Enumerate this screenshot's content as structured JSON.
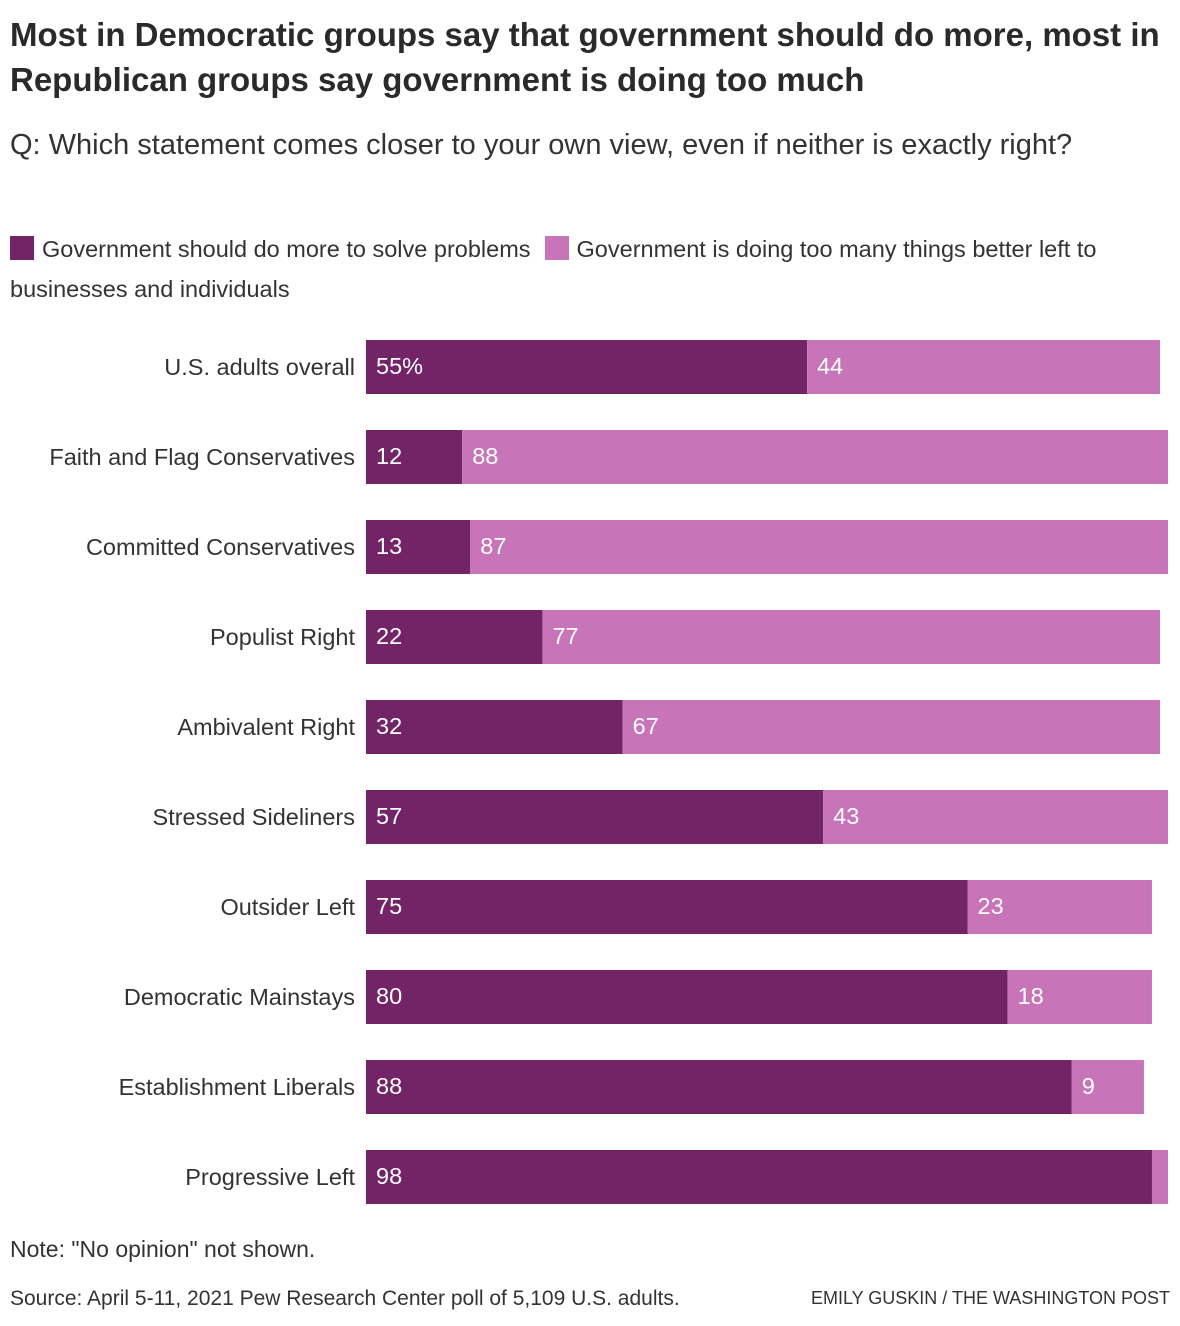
{
  "chart_data": {
    "type": "stacked-bar-horizontal",
    "title": "Most in Democratic groups say that government should do more, most in Republican groups say government is doing too much",
    "subtitle": "Q: Which statement comes closer to your own view, even if neither is exactly right?",
    "categories": [
      "U.S. adults overall",
      "Faith and Flag Conservatives",
      "Committed Conservatives",
      "Populist Right",
      "Ambivalent Right",
      "Stressed Sideliners",
      "Outsider Left",
      "Democratic Mainstays",
      "Establishment Liberals",
      "Progressive Left"
    ],
    "series": [
      {
        "name": "Government should do more to solve problems",
        "color": "#722467",
        "values": [
          55,
          12,
          13,
          22,
          32,
          57,
          75,
          80,
          88,
          98
        ],
        "value_labels": [
          "55%",
          "12",
          "13",
          "22",
          "32",
          "57",
          "75",
          "80",
          "88",
          "98"
        ]
      },
      {
        "name": "Government is doing too many things better left to businesses and individuals",
        "color": "#c774b8",
        "values": [
          44,
          88,
          87,
          77,
          67,
          43,
          23,
          18,
          9,
          2
        ],
        "value_labels": [
          "44",
          "88",
          "87",
          "77",
          "67",
          "43",
          "23",
          "18",
          "9",
          null
        ]
      }
    ],
    "xlim": [
      0,
      100
    ],
    "note": "Note: \"No opinion\" not shown.",
    "source": "Source: April 5-11, 2021 Pew Research Center poll of 5,109 U.S. adults.",
    "credit": "EMILY GUSKIN / THE WASHINGTON POST"
  }
}
